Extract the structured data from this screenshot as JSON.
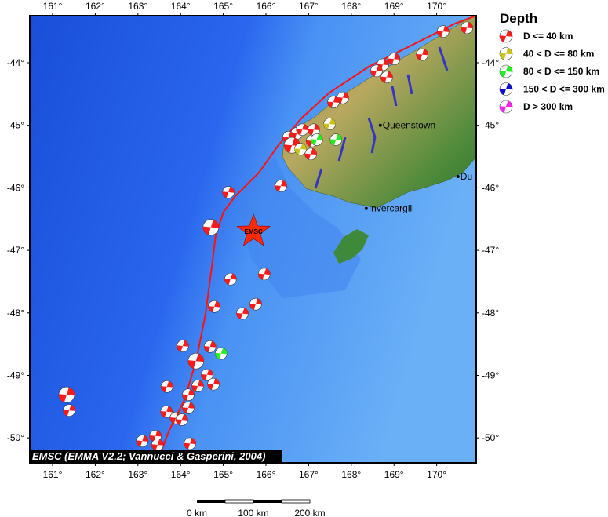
{
  "map": {
    "lon_ticks": [
      161,
      162,
      163,
      164,
      165,
      166,
      167,
      168,
      169,
      170
    ],
    "lat_ticks": [
      -44,
      -45,
      -46,
      -47,
      -48,
      -49,
      -50
    ],
    "lon_range": [
      160.5,
      170.9
    ],
    "lat_range": [
      -43.25,
      -50.35
    ],
    "credit": "EMSC (EMMA V2.2; Vannucci & Gasperini, 2004)",
    "star": {
      "label": "EMSC",
      "lon": 165.71,
      "lat": -46.7,
      "color": "#ff2a00"
    },
    "cities": [
      {
        "name": "Queenstown",
        "lon": 168.68,
        "lat": -45.0
      },
      {
        "name": "Invercargill",
        "lon": 168.35,
        "lat": -46.33
      },
      {
        "name": "Du",
        "lon": 170.5,
        "lat": -45.82
      }
    ],
    "events": [
      {
        "lon": 170.71,
        "lat": -43.44,
        "d": 0
      },
      {
        "lon": 170.15,
        "lat": -43.5,
        "d": 0
      },
      {
        "lon": 169.66,
        "lat": -43.87,
        "d": 0
      },
      {
        "lon": 169.0,
        "lat": -43.94,
        "d": 0
      },
      {
        "lon": 168.74,
        "lat": -44.03,
        "d": 0
      },
      {
        "lon": 168.59,
        "lat": -44.13,
        "d": 0
      },
      {
        "lon": 168.83,
        "lat": -44.23,
        "d": 0
      },
      {
        "lon": 167.8,
        "lat": -44.56,
        "d": 0
      },
      {
        "lon": 167.58,
        "lat": -44.63,
        "d": 0
      },
      {
        "lon": 166.72,
        "lat": -45.13,
        "d": 0
      },
      {
        "lon": 166.85,
        "lat": -45.07,
        "d": 0
      },
      {
        "lon": 166.53,
        "lat": -45.19,
        "d": 0
      },
      {
        "lon": 166.61,
        "lat": -45.32,
        "d": 0
      },
      {
        "lon": 167.12,
        "lat": -45.07,
        "d": 0
      },
      {
        "lon": 167.08,
        "lat": -45.25,
        "d": 0
      },
      {
        "lon": 167.05,
        "lat": -45.46,
        "d": 0
      },
      {
        "lon": 167.49,
        "lat": -44.98,
        "d": 1
      },
      {
        "lon": 166.81,
        "lat": -45.38,
        "d": 1
      },
      {
        "lon": 167.19,
        "lat": -45.23,
        "d": 2
      },
      {
        "lon": 167.64,
        "lat": -45.23,
        "d": 2
      },
      {
        "lon": 166.35,
        "lat": -45.97,
        "d": 0
      },
      {
        "lon": 165.12,
        "lat": -46.07,
        "d": 0
      },
      {
        "lon": 164.71,
        "lat": -46.63,
        "d": 0
      },
      {
        "lon": 165.17,
        "lat": -47.46,
        "d": 0
      },
      {
        "lon": 165.96,
        "lat": -47.38,
        "d": 0
      },
      {
        "lon": 165.76,
        "lat": -47.86,
        "d": 0
      },
      {
        "lon": 165.45,
        "lat": -48.01,
        "d": 0
      },
      {
        "lon": 164.79,
        "lat": -47.9,
        "d": 0
      },
      {
        "lon": 164.05,
        "lat": -48.53,
        "d": 0
      },
      {
        "lon": 164.69,
        "lat": -48.54,
        "d": 0
      },
      {
        "lon": 164.95,
        "lat": -48.65,
        "d": 2
      },
      {
        "lon": 164.36,
        "lat": -48.77,
        "d": 0
      },
      {
        "lon": 163.68,
        "lat": -49.18,
        "d": 0
      },
      {
        "lon": 164.62,
        "lat": -48.99,
        "d": 0
      },
      {
        "lon": 164.4,
        "lat": -49.17,
        "d": 0
      },
      {
        "lon": 164.77,
        "lat": -49.14,
        "d": 0
      },
      {
        "lon": 164.18,
        "lat": -49.31,
        "d": 0
      },
      {
        "lon": 161.33,
        "lat": -49.31,
        "d": 0
      },
      {
        "lon": 161.39,
        "lat": -49.56,
        "d": 0
      },
      {
        "lon": 163.67,
        "lat": -49.58,
        "d": 0
      },
      {
        "lon": 164.18,
        "lat": -49.52,
        "d": 0
      },
      {
        "lon": 163.89,
        "lat": -49.68,
        "d": 0
      },
      {
        "lon": 164.03,
        "lat": -49.71,
        "d": 0
      },
      {
        "lon": 164.22,
        "lat": -50.09,
        "d": 0
      },
      {
        "lon": 163.1,
        "lat": -50.05,
        "d": 0
      },
      {
        "lon": 163.41,
        "lat": -49.97,
        "d": 0
      },
      {
        "lon": 163.46,
        "lat": -50.11,
        "d": 0
      }
    ]
  },
  "legend": {
    "title": "Depth",
    "items": [
      {
        "label": "D <= 40 km",
        "color": "#ff1a1a"
      },
      {
        "label": "40 < D <= 80 km",
        "color": "#c8c21a"
      },
      {
        "label": "80 < D <= 150 km",
        "color": "#22ee22"
      },
      {
        "label": "150 < D <= 300 km",
        "color": "#1010d0"
      },
      {
        "label": "D > 300 km",
        "color": "#ff22ee"
      }
    ]
  },
  "scalebar": {
    "labels": [
      "0 km",
      "100 km",
      "200 km"
    ]
  }
}
